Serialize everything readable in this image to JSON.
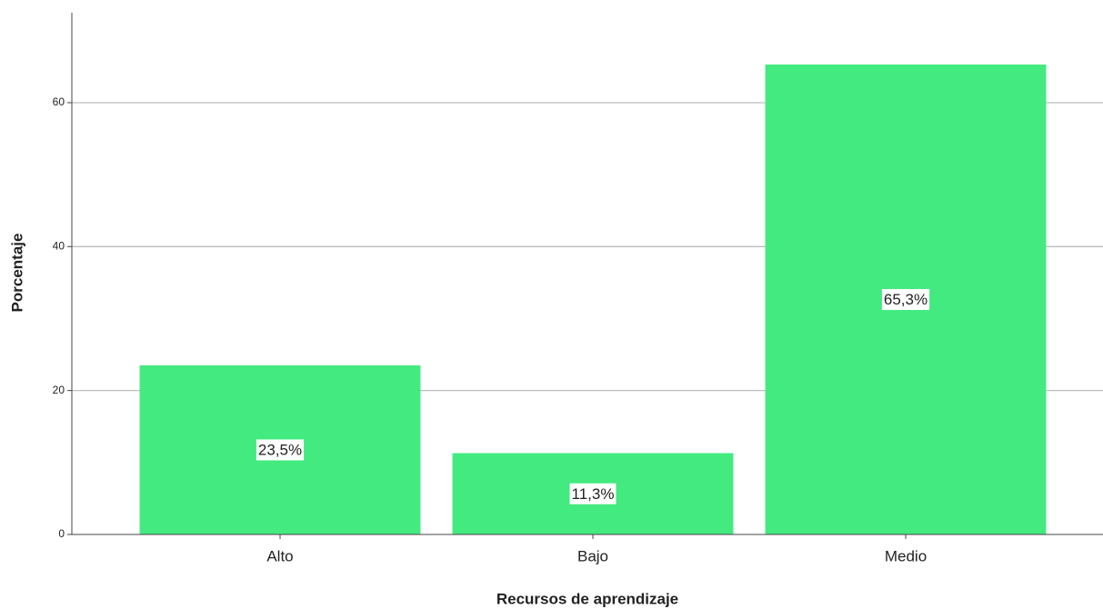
{
  "chart_data": {
    "type": "bar",
    "x_label": "Recursos de aprendizaje",
    "y_label": "Porcentaje",
    "categories": [
      "Alto",
      "Bajo",
      "Medio"
    ],
    "values": [
      23.5,
      11.3,
      65.3
    ],
    "value_labels": [
      "23,5%",
      "11,3%",
      "65,3%"
    ],
    "color": "#43ea7f",
    "ylim": [
      0,
      72.5
    ],
    "yticks": [
      0,
      20,
      40,
      60
    ],
    "grid": true
  }
}
